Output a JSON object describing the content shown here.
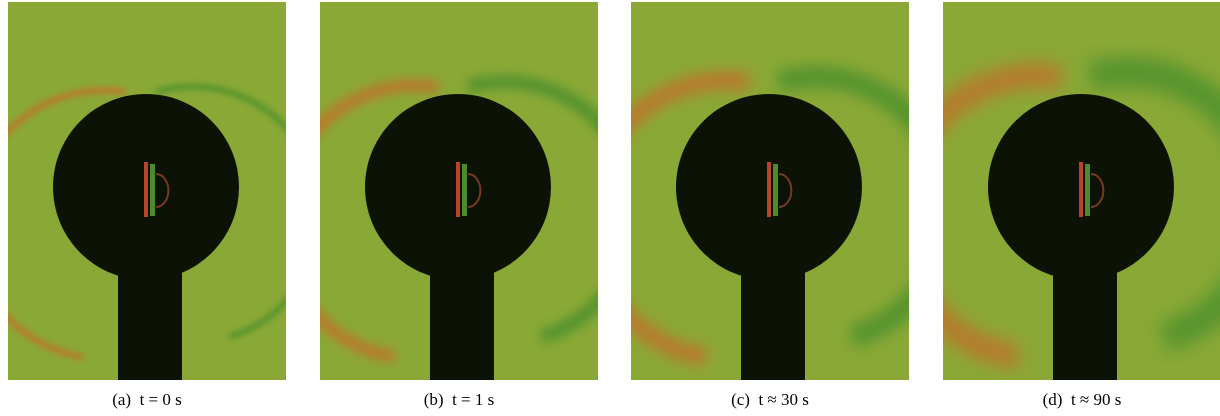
{
  "panels": [
    {
      "caption": "(a)  t = 0 s"
    },
    {
      "caption": "(b)  t = 1 s"
    },
    {
      "caption": "(c)  t ≈ 30 s"
    },
    {
      "caption": "(d)  t ≈ 90 s"
    }
  ]
}
